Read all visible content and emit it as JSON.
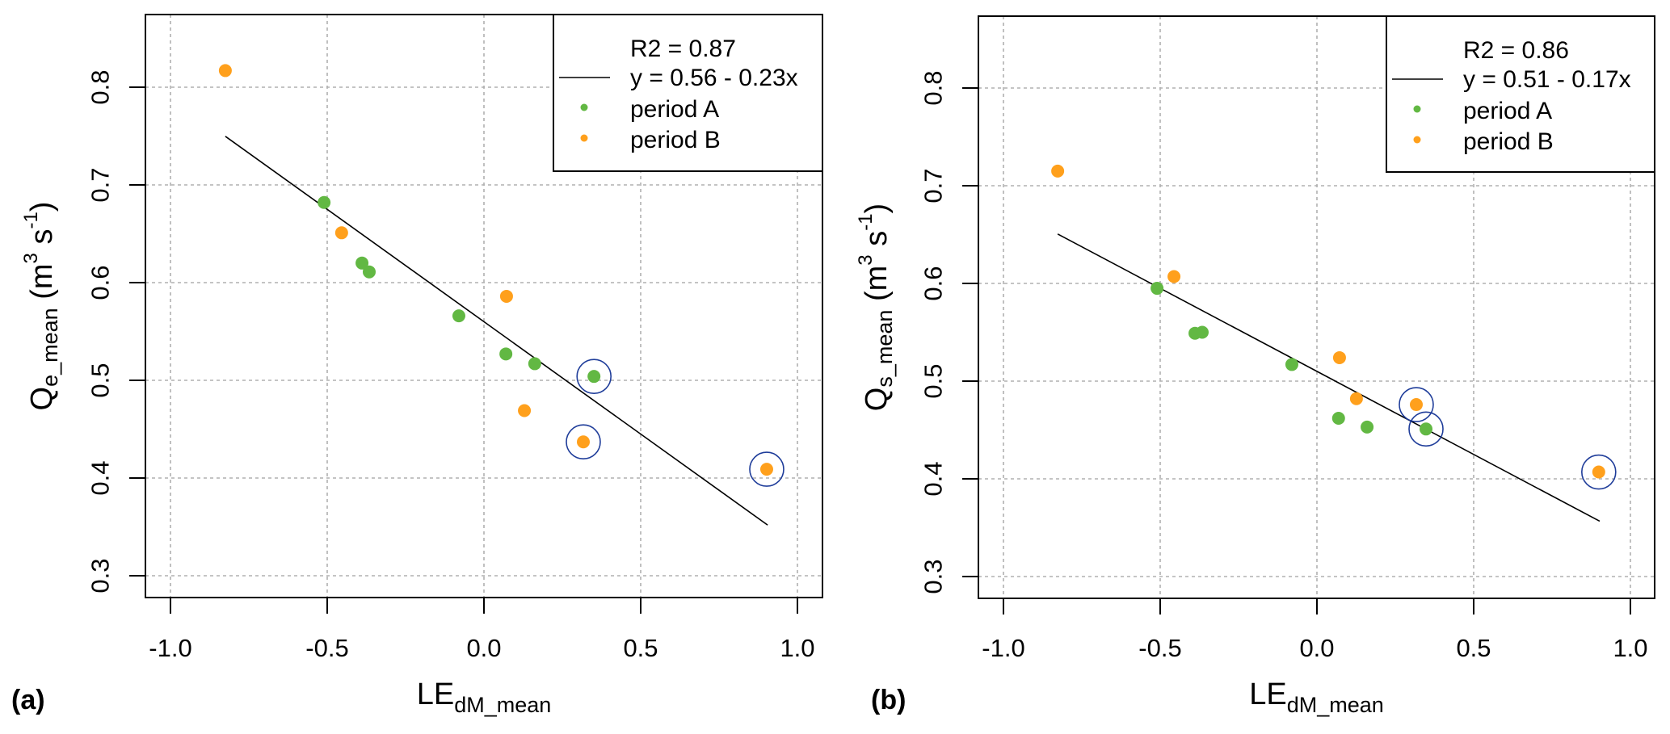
{
  "colors": {
    "period_A": "#62b843",
    "period_B": "#ffa01c",
    "highlight_ring": "#1f3d9a",
    "fit_line": "#000000"
  },
  "chart_data": [
    {
      "type": "scatter",
      "panel_label": "(a)",
      "title": "",
      "xlabel": "LE",
      "xlabel_sub": "dM_mean",
      "ylabel": "Q",
      "ylabel_sub": "e_mean",
      "ylabel_units": "(m3 s-1)",
      "ylabel_units_parts": {
        "open": " (m",
        "sup1": "3",
        "mid": " s",
        "sup2": "-1",
        "close": ")"
      },
      "xlim": [
        -1.1,
        1.07
      ],
      "ylim": [
        0.27,
        0.88
      ],
      "xticks": [
        -1.0,
        -0.5,
        0.0,
        0.5,
        1.0
      ],
      "xtick_labels": [
        "-1.0",
        "-0.5",
        "0.0",
        "0.5",
        "1.0"
      ],
      "yticks": [
        0.3,
        0.4,
        0.5,
        0.6,
        0.7,
        0.8
      ],
      "ytick_labels": [
        "0.3",
        "0.4",
        "0.5",
        "0.6",
        "0.7",
        "0.8"
      ],
      "grid": true,
      "legend": {
        "placement": "top-right",
        "entries": [
          {
            "label": "R2 =  0.87",
            "symbol": "none"
          },
          {
            "label": "y = 0.56 - 0.23x",
            "symbol": "line"
          },
          {
            "label": "period A",
            "symbol": "dot-A"
          },
          {
            "label": "period B",
            "symbol": "dot-B"
          }
        ]
      },
      "fit": {
        "intercept": 0.56,
        "slope": -0.23,
        "r2": 0.87,
        "x_range": [
          -0.825,
          0.905
        ]
      },
      "series": [
        {
          "name": "period A",
          "points": [
            {
              "x": -0.51,
              "y": 0.682
            },
            {
              "x": -0.389,
              "y": 0.62
            },
            {
              "x": -0.366,
              "y": 0.611
            },
            {
              "x": -0.08,
              "y": 0.566
            },
            {
              "x": 0.07,
              "y": 0.527
            },
            {
              "x": 0.162,
              "y": 0.517
            },
            {
              "x": 0.351,
              "y": 0.504,
              "highlighted": true
            }
          ]
        },
        {
          "name": "period B",
          "points": [
            {
              "x": -0.825,
              "y": 0.817
            },
            {
              "x": -0.454,
              "y": 0.651
            },
            {
              "x": 0.072,
              "y": 0.586
            },
            {
              "x": 0.129,
              "y": 0.469
            },
            {
              "x": 0.317,
              "y": 0.437,
              "highlighted": true
            },
            {
              "x": 0.902,
              "y": 0.409,
              "highlighted": true
            }
          ]
        }
      ]
    },
    {
      "type": "scatter",
      "panel_label": "(b)",
      "title": "",
      "xlabel": "LE",
      "xlabel_sub": "dM_mean",
      "ylabel": "Q",
      "ylabel_sub": "s_mean",
      "ylabel_units": "(m3 s-1)",
      "ylabel_units_parts": {
        "open": " (m",
        "sup1": "3",
        "mid": " s",
        "sup2": "-1",
        "close": ")"
      },
      "xlim": [
        -1.1,
        1.07
      ],
      "ylim": [
        0.27,
        0.88
      ],
      "xticks": [
        -1.0,
        -0.5,
        0.0,
        0.5,
        1.0
      ],
      "xtick_labels": [
        "-1.0",
        "-0.5",
        "0.0",
        "0.5",
        "1.0"
      ],
      "yticks": [
        0.3,
        0.4,
        0.5,
        0.6,
        0.7,
        0.8
      ],
      "ytick_labels": [
        "0.3",
        "0.4",
        "0.5",
        "0.6",
        "0.7",
        "0.8"
      ],
      "grid": true,
      "legend": {
        "placement": "top-right",
        "entries": [
          {
            "label": "R2 =  0.86",
            "symbol": "none"
          },
          {
            "label": "y = 0.51 - 0.17x",
            "symbol": "line"
          },
          {
            "label": "period A",
            "symbol": "dot-A"
          },
          {
            "label": "period B",
            "symbol": "dot-B"
          }
        ]
      },
      "fit": {
        "intercept": 0.51,
        "slope": -0.17,
        "r2": 0.86,
        "x_range": [
          -0.827,
          0.902
        ]
      },
      "series": [
        {
          "name": "period A",
          "points": [
            {
              "x": -0.51,
              "y": 0.595
            },
            {
              "x": -0.389,
              "y": 0.549
            },
            {
              "x": -0.366,
              "y": 0.55
            },
            {
              "x": -0.08,
              "y": 0.517
            },
            {
              "x": 0.069,
              "y": 0.462
            },
            {
              "x": 0.16,
              "y": 0.453
            },
            {
              "x": 0.348,
              "y": 0.451,
              "highlighted": true
            }
          ]
        },
        {
          "name": "period B",
          "points": [
            {
              "x": -0.827,
              "y": 0.715
            },
            {
              "x": -0.456,
              "y": 0.607
            },
            {
              "x": 0.072,
              "y": 0.524
            },
            {
              "x": 0.126,
              "y": 0.482
            },
            {
              "x": 0.317,
              "y": 0.476,
              "highlighted": true
            },
            {
              "x": 0.899,
              "y": 0.407,
              "highlighted": true
            }
          ]
        }
      ]
    }
  ]
}
